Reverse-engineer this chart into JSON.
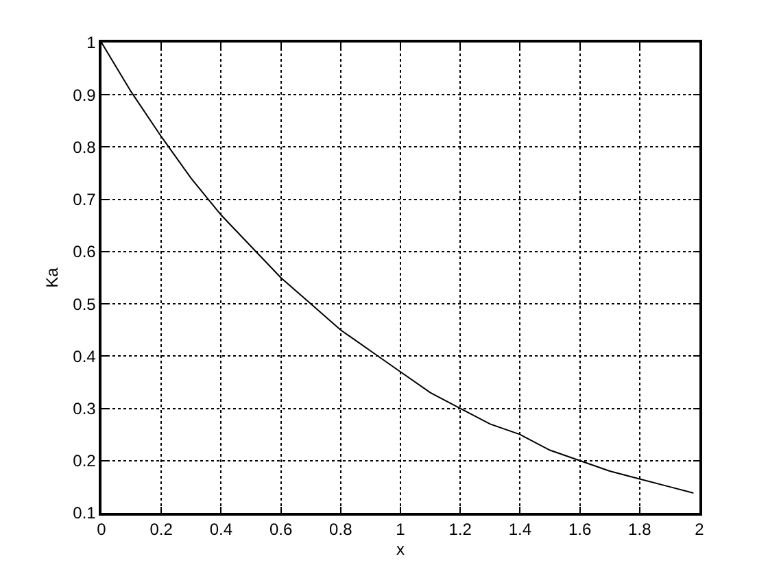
{
  "chart_data": {
    "type": "line",
    "xlabel": "x",
    "ylabel": "Ka",
    "x": [
      0,
      0.1,
      0.2,
      0.3,
      0.4,
      0.5,
      0.6,
      0.7,
      0.8,
      0.9,
      1.0,
      1.1,
      1.2,
      1.3,
      1.4,
      1.5,
      1.6,
      1.7,
      1.8,
      1.9,
      1.98
    ],
    "series": [
      {
        "color": "#000000",
        "values": [
          1,
          0.905,
          0.82,
          0.74,
          0.67,
          0.61,
          0.55,
          0.5,
          0.45,
          0.41,
          0.37,
          0.33,
          0.3,
          0.27,
          0.25,
          0.22,
          0.2,
          0.18,
          0.165,
          0.15,
          0.138
        ]
      }
    ],
    "xlim": [
      0,
      2
    ],
    "xticks": [
      0,
      0.2,
      0.4,
      0.6,
      0.8,
      1,
      1.2,
      1.4,
      1.6,
      1.8,
      2
    ],
    "ylim": [
      0.1,
      1
    ],
    "yticks": [
      0.1,
      0.2,
      0.3,
      0.4,
      0.5,
      0.6,
      0.7,
      0.8,
      0.9,
      1
    ],
    "grid": true,
    "marker": "none",
    "line_style": "solid"
  }
}
